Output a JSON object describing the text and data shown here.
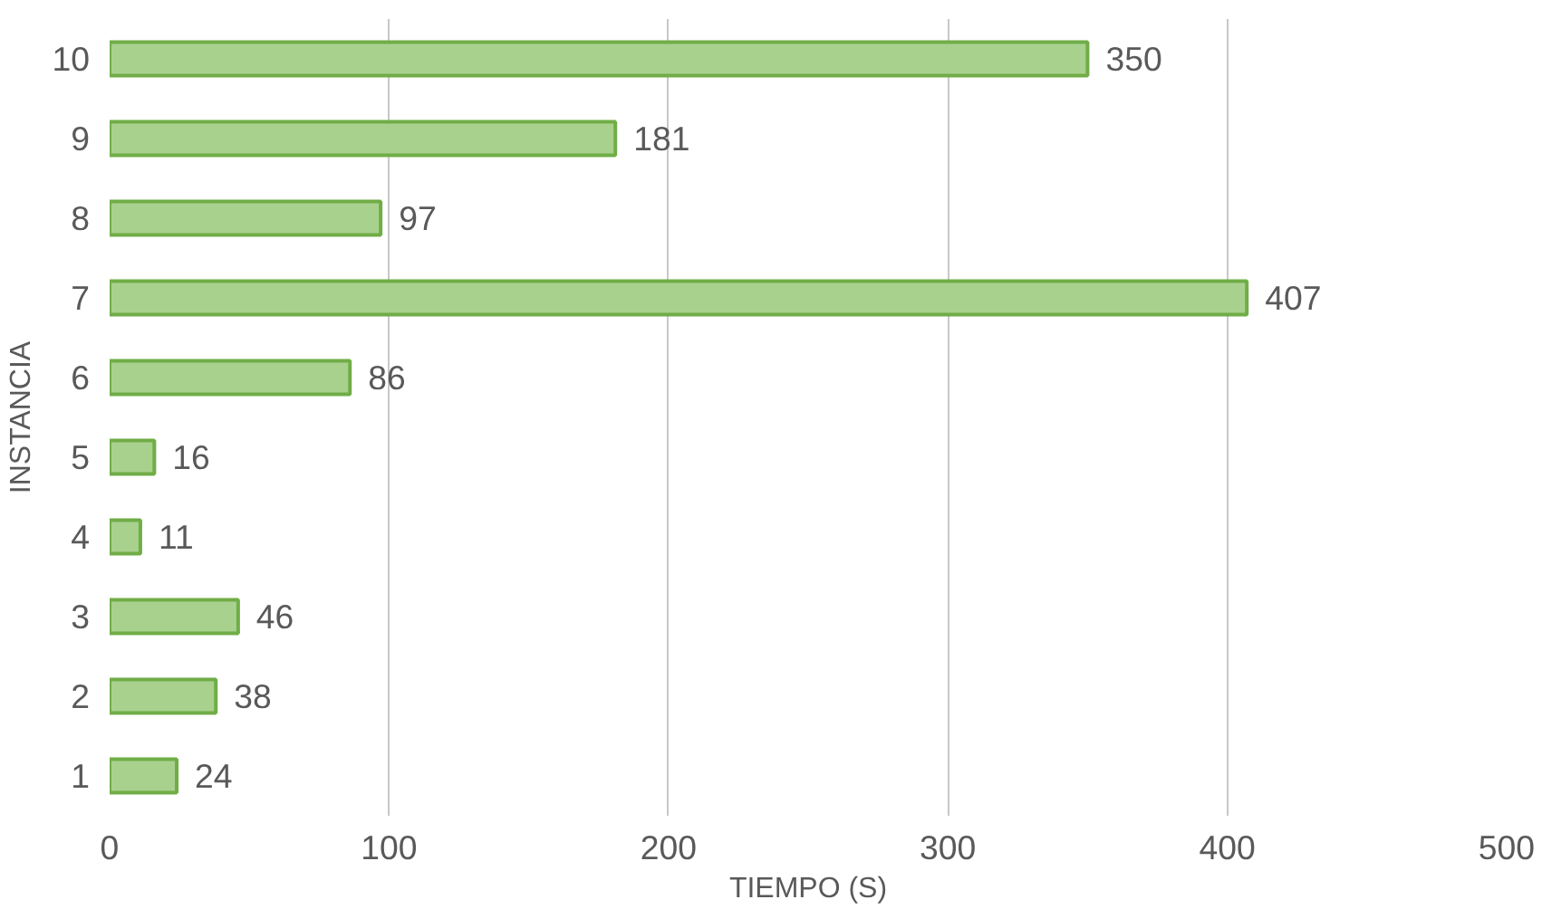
{
  "chart_data": {
    "type": "bar",
    "orientation": "horizontal",
    "xlabel": "TIEMPO (S)",
    "ylabel": "INSTANCIA",
    "categories": [
      "10",
      "9",
      "8",
      "7",
      "6",
      "5",
      "4",
      "3",
      "2",
      "1"
    ],
    "values": [
      350,
      181,
      97,
      407,
      86,
      16,
      11,
      46,
      38,
      24
    ],
    "color": "#a9d18e",
    "xlim": [
      0,
      500
    ],
    "xticks": [
      0,
      100,
      200,
      300,
      400,
      500
    ],
    "grid": "x",
    "data_labels": true
  }
}
